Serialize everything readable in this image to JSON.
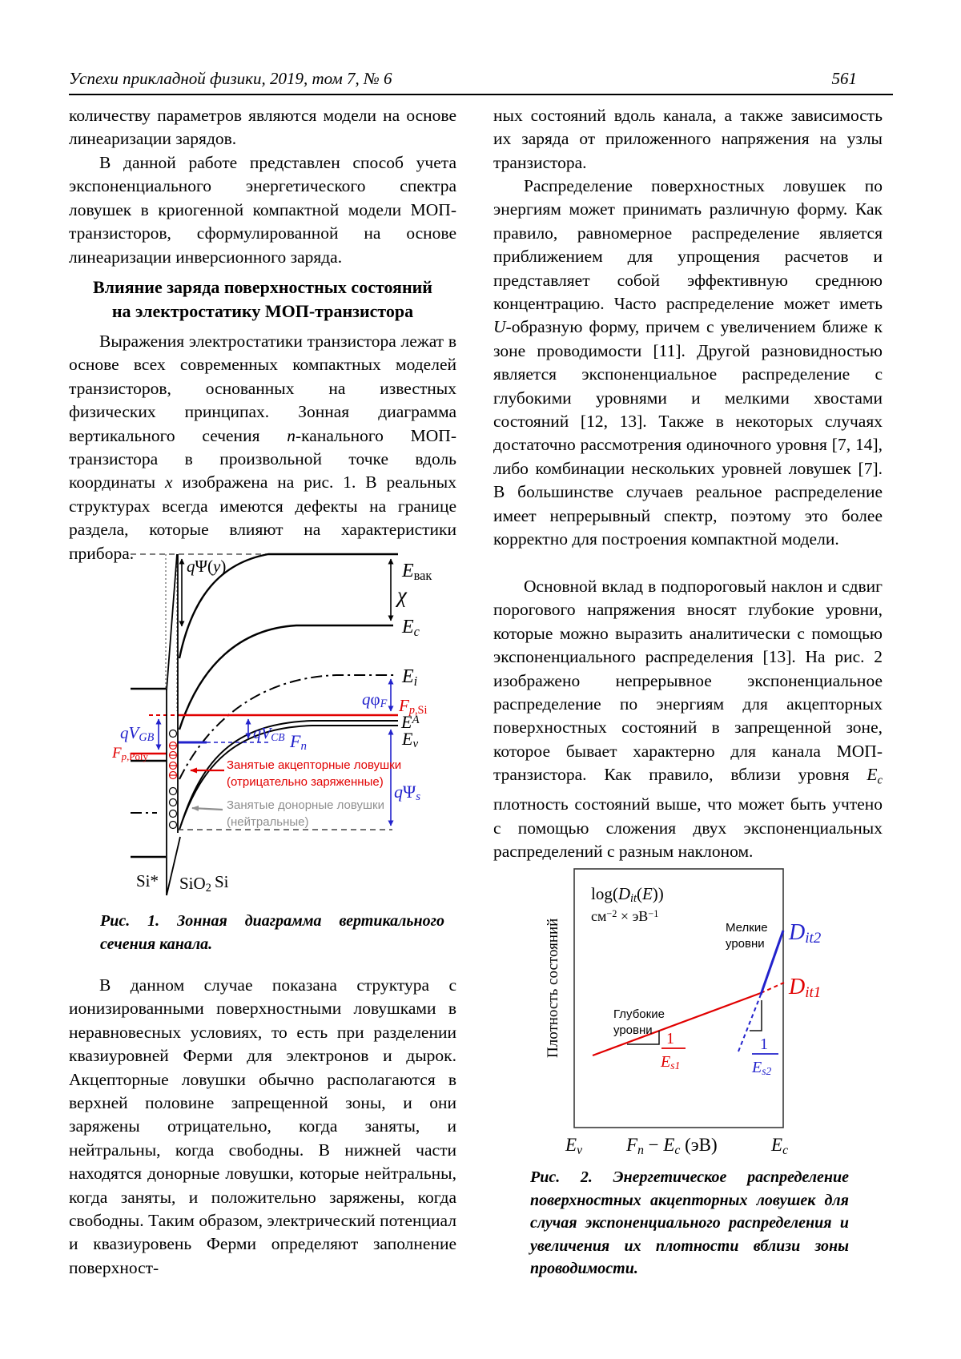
{
  "header": {
    "journal": "Успехи прикладной физики, 2019, том 7, № 6",
    "page_number": "561"
  },
  "lc": {
    "p1": "количеству параметров являются модели на основе линеаризации зарядов.",
    "p2": "В данной работе представлен способ учета экспоненциального энергетического спектра ловушек в криогенной компактной модели МОП-транзисторов, сформулированной на основе линеаризации инверсионного заряда.",
    "heading1": "Влияние заряда поверхностных состояний",
    "heading2": "на электростатику МОП-транзистора",
    "p3": [
      {
        "t": "Выражения электростатики транзистора лежат в основе всех современных компактных моделей транзисторов, основанных на известных физических принципах. Зонная диаграмма вертикального сечения "
      },
      {
        "t": "n",
        "c": "i"
      },
      {
        "t": "-канального МОП-транзистора в произвольной точке вдоль координаты "
      },
      {
        "t": "x",
        "c": "i"
      },
      {
        "t": " изображена на рис. 1. В реальных структурах всегда имеются дефекты на границе раздела, которые влияют на характеристики прибора."
      }
    ],
    "fig1_caption": "Рис. 1. Зонная диаграмма вертикального сечения канала.",
    "p4": "В данном случае показана структура с ионизированными поверхностными ловушками в неравновесных условиях, то есть при разделении квазиуровней Ферми для электронов и дырок. Акцепторные ловушки обычно располагаются в верхней половине запрещенной зоны, и они заряжены отрицательно, когда заняты, и нейтральны, когда свободны. В нижней части находятся донорные ловушки, которые нейтральны, когда заняты, и положительно заряжены, когда свободны. Таким образом, электрический потенциал и квазиуровень Ферми определяют заполнение поверхност-"
  },
  "rc": {
    "p1": "ных состояний вдоль канала, а также зависимость их заряда от приложенного напряжения на узлы транзистора.",
    "p2": [
      {
        "t": "Распределение поверхностных ловушек по энергиям может принимать различную форму. Как правило, равномерное распределение является приближением для упрощения расчетов и представляет собой эффективную среднюю концентрацию. Часто распределение может иметь "
      },
      {
        "t": "U",
        "c": "i"
      },
      {
        "t": "-образную форму, причем с увеличением ближе к зоне проводимости [11]. Другой разновидностью является экспоненциальное распределение с глубокими уровнями и мелкими хвостами состояний [12, 13]. Также в некоторых случаях достаточно рассмотрения одиночного уровня [7, 14], либо комбинации нескольких уровней ловушек [7]. В большинстве случаев реальное распределение имеет непрерывный спектр, поэтому это более корректно для построения компактной модели."
      }
    ],
    "p3": [
      {
        "t": "Основной вклад в подпороговый наклон и сдвиг порогового напряжения вносят глубокие уровни, которые можно выразить аналитически с помощью экспоненциального распределения [13]. На рис. 2 изображено непрерывное экспоненциальное распределение по энергиям для акцепторных поверхностных состояний в запрещенной зоне, которое бывает характерно для канала МОП-транзистора. Как правило, вблизи уровня "
      },
      {
        "t": "E",
        "c": "i"
      },
      {
        "t": "c",
        "c": "sub i"
      },
      {
        "t": " плотность состояний выше, что может быть учтено с помощью сложения двух экспоненциальных распределений с разным наклоном."
      }
    ],
    "fig2_caption": "Рис. 2. Энергетическое распределение поверхностных акцепторных ловушек для случая экспоненциального распределения и увеличения их плотности вблизи зоны проводимости."
  },
  "fig1": {
    "q_psi_y": [
      {
        "t": "q",
        "c": "i"
      },
      {
        "t": "Ψ(",
        "c": "r"
      },
      {
        "t": "y",
        "c": "i"
      },
      {
        "t": ")",
        "c": "r"
      }
    ],
    "e_vac": [
      {
        "t": "E",
        "c": "i"
      },
      {
        "t": "вак",
        "c": "sub r"
      }
    ],
    "chi": "χ",
    "e_c": [
      {
        "t": "E",
        "c": "i"
      },
      {
        "t": "c",
        "c": "sub i"
      }
    ],
    "e_i": [
      {
        "t": "E",
        "c": "i"
      },
      {
        "t": "i",
        "c": "sub i"
      }
    ],
    "q_phi_f": [
      {
        "t": "q",
        "c": "i"
      },
      {
        "t": "φ",
        "c": "r"
      },
      {
        "t": "F",
        "c": "sub i"
      }
    ],
    "f_p_si": [
      {
        "t": "F",
        "c": "i"
      },
      {
        "t": "p",
        "c": "sub i"
      },
      {
        "t": ",Si",
        "c": "sub r"
      }
    ],
    "e_a": [
      {
        "t": "E",
        "c": "i"
      },
      {
        "t": "A",
        "c": "sup i"
      }
    ],
    "e_v": [
      {
        "t": "E",
        "c": "i"
      },
      {
        "t": "v",
        "c": "sub i"
      }
    ],
    "q_v_gb": [
      {
        "t": "qV",
        "c": "i"
      },
      {
        "t": "GB",
        "c": "sub i"
      }
    ],
    "f_p_poly": [
      {
        "t": "F",
        "c": "i"
      },
      {
        "t": "p",
        "c": "sub i"
      },
      {
        "t": ",Poly",
        "c": "sub r"
      }
    ],
    "q_v_cb": [
      {
        "t": "qV",
        "c": "i"
      },
      {
        "t": "CB",
        "c": "sub i"
      }
    ],
    "f_n": [
      {
        "t": "F",
        "c": "i"
      },
      {
        "t": "n",
        "c": "sub i"
      }
    ],
    "q_psi_s": [
      {
        "t": "q",
        "c": "i"
      },
      {
        "t": "Ψ",
        "c": "r"
      },
      {
        "t": "s",
        "c": "sub i"
      }
    ],
    "acceptor_note1": "Занятые акцепторные ловушки",
    "acceptor_note2": "(отрицательно заряженные)",
    "donor_note1": "Занятые донорные ловушки",
    "donor_note2": "(нейтральные)",
    "si_star": "Si*",
    "sio2": [
      {
        "t": "SiO",
        "c": "r"
      },
      {
        "t": "2",
        "c": "sub r"
      }
    ],
    "si": "Si",
    "colors": {
      "red": "#e10000",
      "blue": "#2222cc",
      "gray": "#8f8f8f"
    }
  },
  "fig2": {
    "ylabel": "Плотность состояний",
    "formula": [
      {
        "t": "log(",
        "c": "r"
      },
      {
        "t": "D",
        "c": "i"
      },
      {
        "t": "it",
        "c": "sub i"
      },
      {
        "t": "(",
        "c": "r"
      },
      {
        "t": "E",
        "c": "i"
      },
      {
        "t": "))",
        "c": "r"
      }
    ],
    "units": [
      {
        "t": "см",
        "c": "r"
      },
      {
        "t": "−2",
        "c": "sup r"
      },
      {
        "t": " × эВ",
        "c": "r"
      },
      {
        "t": "−1",
        "c": "sup r"
      }
    ],
    "shallow1": "Мелкие",
    "shallow2": "уровни",
    "deep1": "Глубокие",
    "deep2": "уровни",
    "d_it2": [
      {
        "t": "D",
        "c": "i"
      },
      {
        "t": "it2",
        "c": "sub i"
      }
    ],
    "d_it1": [
      {
        "t": "D",
        "c": "i"
      },
      {
        "t": "it1",
        "c": "sub i"
      }
    ],
    "one1": "1",
    "e_s1": [
      {
        "t": "E",
        "c": "i"
      },
      {
        "t": "s1",
        "c": "sub i"
      }
    ],
    "one2": "1",
    "e_s2": [
      {
        "t": "E",
        "c": "i"
      },
      {
        "t": "s2",
        "c": "sub i"
      }
    ],
    "x_ev": [
      {
        "t": "E",
        "c": "i"
      },
      {
        "t": "v",
        "c": "sub i"
      }
    ],
    "x_mid": [
      {
        "t": "F",
        "c": "i"
      },
      {
        "t": "n",
        "c": "sub i"
      },
      {
        "t": " − ",
        "c": "r"
      },
      {
        "t": "E",
        "c": "i"
      },
      {
        "t": "c",
        "c": "sub i"
      },
      {
        "t": " (эВ)",
        "c": "r"
      }
    ],
    "x_ec": [
      {
        "t": "E",
        "c": "i"
      },
      {
        "t": "c",
        "c": "sub i"
      }
    ]
  },
  "chart_data": {
    "type": "line",
    "title": "Энергетическое распределение поверхностных акцепторных ловушек (схема)",
    "xlabel": "Fn − Ec (эВ)",
    "ylabel": "Плотность состояний log(Dit(E)), см−2 × эВ−1",
    "x_axis_labels": [
      "Ev",
      "Ec"
    ],
    "grid": false,
    "legend_position": "labels at line ends",
    "series": [
      {
        "name": "Dit1 — глубокие уровни, экспоненциальный наклон 1/Es1",
        "color": "#e10000",
        "style": "solid, becomes dashed near Ec",
        "points_frac": [
          [
            0.09,
            0.28
          ],
          [
            0.89,
            0.52
          ],
          [
            1.0,
            0.56
          ]
        ]
      },
      {
        "name": "Dit2 — мелкие уровни, экспоненциальный наклон 1/Es2",
        "color": "#2222cc",
        "style": "dashed below crossing, solid above",
        "points_frac": [
          [
            0.79,
            0.29
          ],
          [
            0.89,
            0.52
          ],
          [
            1.0,
            0.76
          ]
        ]
      }
    ],
    "annotations": [
      "Глубокие уровни",
      "Мелкие уровни",
      "1/Es1",
      "1/Es2"
    ]
  }
}
